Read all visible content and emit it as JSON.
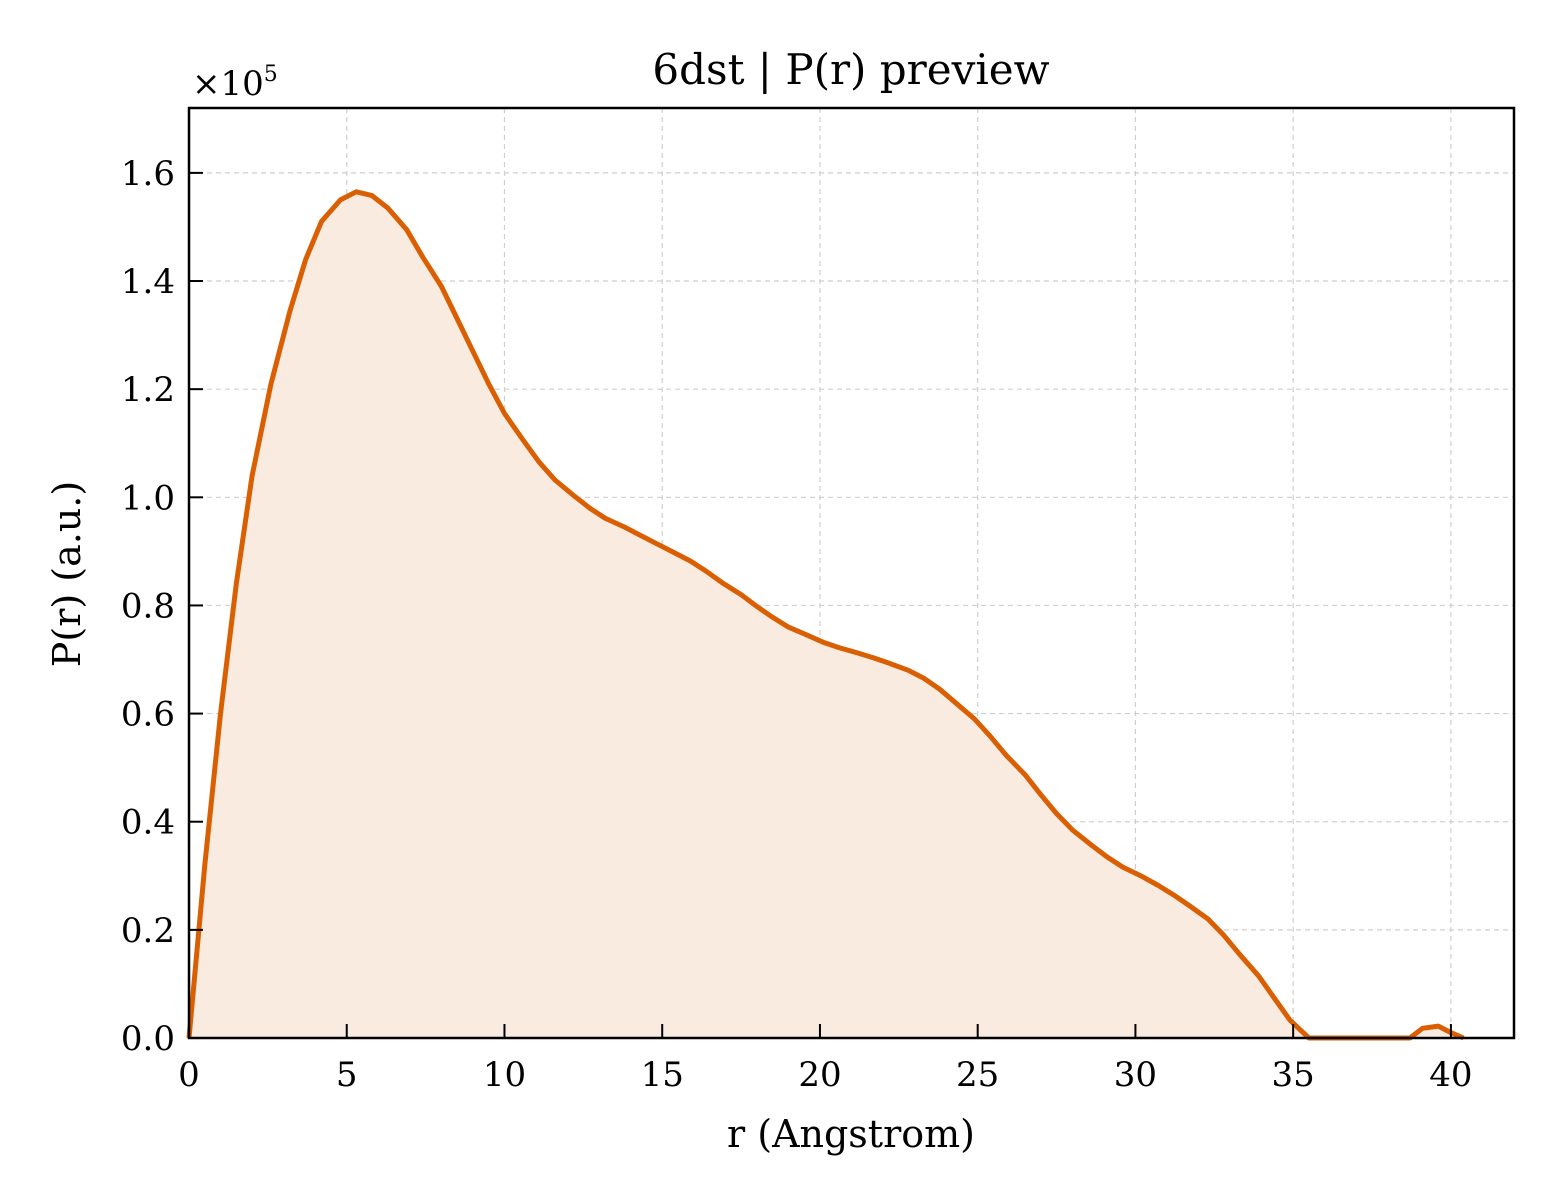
{
  "chart_data": {
    "type": "area",
    "title": "6dst | P(r) preview",
    "xlabel": "r (Angstrom)",
    "ylabel": "P(r) (a.u.)",
    "y_multiplier_label": "×10",
    "y_multiplier_exponent": "5",
    "xlim": [
      0,
      42
    ],
    "ylim": [
      0,
      1.72
    ],
    "xticks": [
      0,
      5,
      10,
      15,
      20,
      25,
      30,
      35,
      40
    ],
    "xtick_labels": [
      "0",
      "5",
      "10",
      "15",
      "20",
      "25",
      "30",
      "35",
      "40"
    ],
    "yticks": [
      0.0,
      0.2,
      0.4,
      0.6,
      0.8,
      1.0,
      1.2,
      1.4,
      1.6
    ],
    "ytick_labels": [
      "0.0",
      "0.2",
      "0.4",
      "0.6",
      "0.8",
      "1.0",
      "1.2",
      "1.4",
      "1.6"
    ],
    "grid": true,
    "colors": {
      "line": "#d95f02",
      "fill": "#f9ebe0"
    },
    "series": [
      {
        "x": [
          0,
          0.5,
          1.0,
          1.5,
          2.0,
          2.6,
          3.2,
          3.7,
          4.2,
          4.8,
          5.3,
          5.8,
          6.3,
          6.9,
          7.4,
          8.0,
          8.5,
          9.0,
          9.5,
          10.0,
          10.6,
          11.1,
          11.6,
          12.2,
          12.7,
          13.2,
          13.8,
          14.3,
          14.8,
          15.3,
          15.9,
          16.4,
          16.9,
          17.5,
          18.0,
          18.5,
          19.0,
          19.6,
          20.1,
          20.6,
          21.2,
          21.7,
          22.2,
          22.8,
          23.3,
          23.8,
          24.3,
          24.9,
          25.4,
          25.9,
          26.5,
          27.0,
          27.5,
          28.0,
          28.6,
          29.1,
          29.6,
          30.2,
          30.7,
          31.2,
          31.7,
          32.3,
          32.8,
          33.3,
          33.9,
          34.4,
          34.9,
          35.5,
          35.6,
          38.7,
          39.1,
          39.6,
          40.0,
          40.4
        ],
        "y": [
          0.0,
          0.32,
          0.6,
          0.84,
          1.04,
          1.21,
          1.345,
          1.44,
          1.51,
          1.55,
          1.565,
          1.558,
          1.535,
          1.495,
          1.445,
          1.39,
          1.33,
          1.27,
          1.21,
          1.155,
          1.105,
          1.065,
          1.032,
          1.003,
          0.98,
          0.961,
          0.945,
          0.93,
          0.915,
          0.9,
          0.882,
          0.863,
          0.842,
          0.82,
          0.798,
          0.778,
          0.76,
          0.745,
          0.732,
          0.722,
          0.712,
          0.703,
          0.693,
          0.68,
          0.665,
          0.645,
          0.62,
          0.59,
          0.558,
          0.523,
          0.487,
          0.45,
          0.415,
          0.385,
          0.357,
          0.335,
          0.316,
          0.299,
          0.283,
          0.265,
          0.245,
          0.22,
          0.19,
          0.155,
          0.115,
          0.074,
          0.033,
          0.0,
          0.0,
          0.0,
          0.018,
          0.022,
          0.01,
          0.0
        ]
      }
    ]
  }
}
